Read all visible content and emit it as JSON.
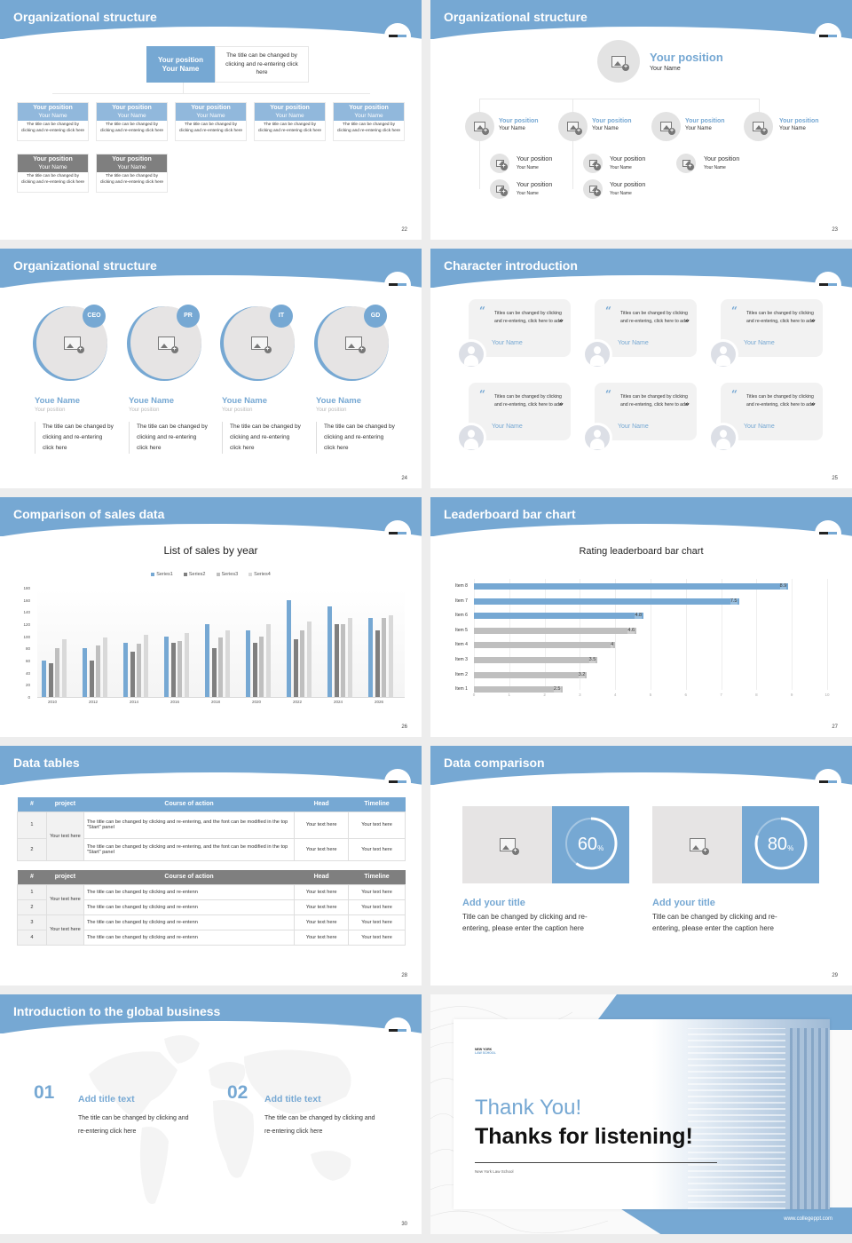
{
  "theme": {
    "accent": "#76a8d3",
    "gray_header": "#7f7f7f",
    "light_gray": "#e6e4e4"
  },
  "slides": [
    {
      "page": "22",
      "title": "Organizational structure",
      "top": {
        "position": "Your position",
        "name": "Your Name",
        "desc": "The title can be changed by clicking and re-entering click here"
      },
      "row1": [
        {
          "position": "Your position",
          "name": "Your Name",
          "desc": "The title can be changed by clicking and re-entering click here"
        },
        {
          "position": "Your position",
          "name": "Your Name",
          "desc": "The title can be changed by clicking and re-entering click here"
        },
        {
          "position": "Your position",
          "name": "Your Name",
          "desc": "The title can be changed by clicking and re-entering click here"
        },
        {
          "position": "Your position",
          "name": "Your Name",
          "desc": "The title can be changed by clicking and re-entering click here"
        },
        {
          "position": "Your position",
          "name": "Your Name",
          "desc": "The title can be changed by clicking and re-entering click here"
        }
      ],
      "row2": [
        {
          "position": "Your position",
          "name": "Your Name",
          "desc": "The title can be changed by clicking and re-entering click here"
        },
        {
          "position": "Your position",
          "name": "Your Name",
          "desc": "The title can be changed by clicking and re-entering click here"
        }
      ]
    },
    {
      "page": "23",
      "title": "Organizational structure",
      "top": {
        "position": "Your position",
        "name": "Your Name"
      },
      "level1": [
        {
          "position": "Your position",
          "name": "Your Name"
        },
        {
          "position": "Your position",
          "name": "Your Name"
        },
        {
          "position": "Your position",
          "name": "Your Name"
        },
        {
          "position": "Your position",
          "name": "Your Name"
        }
      ],
      "level2": [
        {
          "position": "Your position",
          "name": "Your Name"
        },
        {
          "position": "Your position",
          "name": "Your Name"
        },
        {
          "position": "Your position",
          "name": "Your Name"
        },
        {
          "position": "Your position",
          "name": "Your Name"
        },
        {
          "position": "Your position",
          "name": "Your Name"
        }
      ]
    },
    {
      "page": "24",
      "title": "Organizational structure",
      "people": [
        {
          "tag": "CEO",
          "name": "Youe Name",
          "position": "Your position",
          "desc": "The title can be changed by clicking and re-entering click here"
        },
        {
          "tag": "PR",
          "name": "Youe Name",
          "position": "Your position",
          "desc": "The title can be changed by clicking and re-entering click here"
        },
        {
          "tag": "IT",
          "name": "Youe Name",
          "position": "Your position",
          "desc": "The title can be changed by clicking and re-entering click here"
        },
        {
          "tag": "GD",
          "name": "Youe Name",
          "position": "Your position",
          "desc": "The title can be changed by clicking and re-entering click here"
        }
      ]
    },
    {
      "page": "25",
      "title": "Character introduction",
      "quote_open": "“",
      "quote_close": "”",
      "cards": [
        {
          "text": "Titles can be changed by clicking and re-entering, click here to add",
          "name": "Your Name"
        },
        {
          "text": "Titles can be changed by clicking and re-entering, click here to add",
          "name": "Your Name"
        },
        {
          "text": "Titles can be changed by clicking and re-entering, click here to add",
          "name": "Your Name"
        },
        {
          "text": "Titles can be changed by clicking and re-entering, click here to add",
          "name": "Your Name"
        },
        {
          "text": "Titles can be changed by clicking and re-entering, click here to add",
          "name": "Your Name"
        },
        {
          "text": "Titles can be changed by clicking and re-entering, click here to add",
          "name": "Your Name"
        }
      ]
    },
    {
      "page": "26",
      "title": "Comparison of sales data"
    },
    {
      "page": "27",
      "title": "Leaderboard bar chart"
    },
    {
      "page": "28",
      "title": "Data tables",
      "table1": {
        "headers": [
          "#",
          "project",
          "Course of action",
          "Head",
          "Timeline"
        ],
        "project": "Your text here",
        "rows": [
          {
            "num": "1",
            "action": "The title can be changed by clicking and re-entering, and the font can be modified in the top \"Start\" panel",
            "head": "Your text here",
            "timeline": "Your text here"
          },
          {
            "num": "2",
            "action": "The title can be changed by clicking and re-entering, and the font can be modified in the top \"Start\" panel",
            "head": "Your text here",
            "timeline": "Your text here"
          }
        ]
      },
      "table2": {
        "headers": [
          "#",
          "project",
          "Course of action",
          "Head",
          "Timeline"
        ],
        "project_a": "Your text here",
        "project_b": "Your text here",
        "rows": [
          {
            "num": "1",
            "action": "The title can be changed by clicking and re-entenn",
            "head": "Your text here",
            "timeline": "Your text here"
          },
          {
            "num": "2",
            "action": "The title can be changed by clicking and re-entenn",
            "head": "Your text here",
            "timeline": "Your text here"
          },
          {
            "num": "3",
            "action": "The title can be changed by clicking and re-entenn",
            "head": "Your text here",
            "timeline": "Your text here"
          },
          {
            "num": "4",
            "action": "The title can be changed by clicking and re-entenn",
            "head": "Your text here",
            "timeline": "Your text here"
          }
        ]
      }
    },
    {
      "page": "29",
      "title": "Data comparison",
      "items": [
        {
          "value": "60",
          "unit": "%",
          "title": "Add your title",
          "desc": "Title can be changed by clicking and re-entering, please enter the caption here"
        },
        {
          "value": "80",
          "unit": "%",
          "title": "Add your title",
          "desc": "Title can be changed by clicking and re-entering, please enter the caption here"
        }
      ]
    },
    {
      "page": "30",
      "title": "Introduction to the global business",
      "items": [
        {
          "num": "01",
          "title": "Add title text",
          "desc": "The title can be changed by clicking and re-entering click here"
        },
        {
          "num": "02",
          "title": "Add title text",
          "desc": "The title can be changed by clicking and re-entering click here"
        }
      ]
    },
    {
      "page": "31",
      "logo_line1": "NEW YORK",
      "logo_line2": "LAW SCHOOL",
      "thank_you": "Thank You!",
      "thanks_listening": "Thanks for listening!",
      "subtitle": "New York Law School",
      "url": "www.collegeppt.com"
    }
  ],
  "chart_data": [
    {
      "type": "bar",
      "title": "List of sales by year",
      "categories": [
        "2010",
        "2012",
        "2014",
        "2016",
        "2018",
        "2020",
        "2022",
        "2024",
        "2026"
      ],
      "series": [
        {
          "name": "Series1",
          "color": "#76a8d3",
          "values": [
            60,
            80,
            90,
            100,
            120,
            110,
            160,
            150,
            130
          ]
        },
        {
          "name": "Series2",
          "color": "#7f7f7f",
          "values": [
            55,
            60,
            75,
            90,
            80,
            90,
            95,
            120,
            110
          ]
        },
        {
          "name": "Series3",
          "color": "#bfbfbf",
          "values": [
            80,
            85,
            88,
            92,
            98,
            100,
            110,
            120,
            130
          ]
        },
        {
          "name": "Series4",
          "color": "#d9d9d9",
          "values": [
            95,
            98,
            102,
            105,
            110,
            120,
            125,
            130,
            135
          ]
        }
      ],
      "yticks": [
        "0",
        "20",
        "40",
        "60",
        "80",
        "100",
        "120",
        "140",
        "160",
        "180"
      ],
      "ylim": [
        0,
        180
      ],
      "legend_position": "top",
      "grid": false
    },
    {
      "type": "bar",
      "orientation": "horizontal",
      "title": "Rating leaderboard bar chart",
      "categories": [
        "Item 8",
        "Item 7",
        "Item 6",
        "Item 5",
        "Item 4",
        "Item 3",
        "Item 2",
        "Item 1"
      ],
      "values": [
        8.9,
        7.5,
        4.8,
        4.6,
        4,
        3.5,
        3.2,
        2.5
      ],
      "value_labels": [
        "8.9",
        "7.5",
        "4.8",
        "4.6",
        "4",
        "3.5",
        "3.2",
        "2.5"
      ],
      "highlight_color": "#76a8d3",
      "base_color": "#bfbfbf",
      "xticks": [
        "0",
        "1",
        "2",
        "3",
        "4",
        "5",
        "6",
        "7",
        "8",
        "9",
        "10"
      ],
      "xlim": [
        0,
        10
      ],
      "grid": true
    }
  ]
}
